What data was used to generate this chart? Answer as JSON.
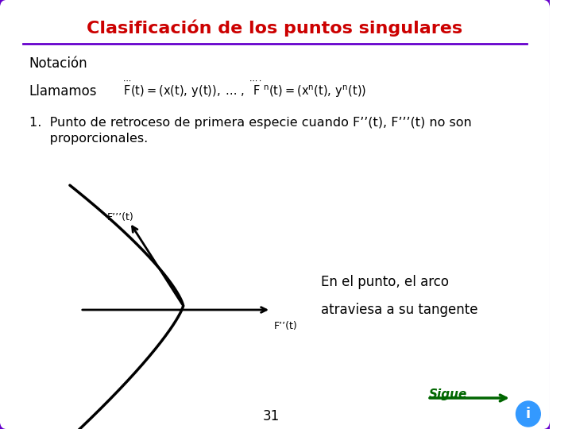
{
  "title": "Clasificación de los puntos singulares",
  "title_color": "#CC0000",
  "title_fontsize": 16,
  "border_color": "#6600CC",
  "bg_color": "#FFFFFF",
  "line_color": "#6600CC",
  "text_notacion": "Notación",
  "text_llamamos": "Llamamos",
  "text_point1": "1.  Punto de retroceso de primera especie cuando F’’(t), F’’’(t) no son",
  "text_point1b": "     proporcionales.",
  "text_en_el_punto": "En el punto, el arco",
  "text_atraviesa": "atraviesa a su tangente",
  "text_sigue": "Sigue",
  "text_page": "31",
  "label_Fdoubleprime": "F’’(t)",
  "label_Ftripleprime": "F’’’(t)",
  "sigue_color": "#006600",
  "arrow_color": "#006600"
}
